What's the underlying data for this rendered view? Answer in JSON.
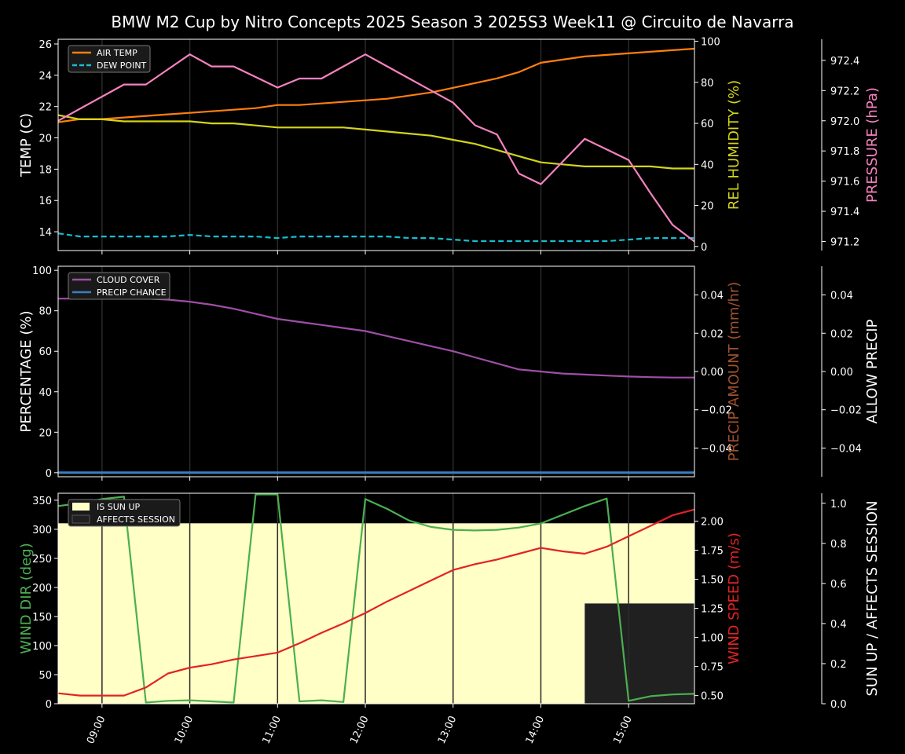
{
  "title": "BMW M2 Cup by Nitro Concepts 2025 Season 3 2025S3 Week11 @ Circuito de Navarra",
  "time_ticks": [
    "09:00",
    "10:00",
    "11:00",
    "12:00",
    "13:00",
    "14:00",
    "15:00"
  ],
  "colors": {
    "air_temp": "#ff7f0e",
    "dew_point": "#17becf",
    "humidity": "#d4d41a",
    "pressure": "#f782bf",
    "cloud": "#9e4fa6",
    "precip_chance": "#3a7fc0",
    "precip_amount_label": "#a0522d",
    "wind_dir": "#4caf50",
    "wind_speed": "#e32222",
    "sun_up": "#ffffc6",
    "affects": "#202020"
  },
  "chart_data": [
    {
      "type": "line",
      "id": "temperature",
      "x": [
        "08:30",
        "08:45",
        "09:00",
        "09:15",
        "09:30",
        "09:45",
        "10:00",
        "10:15",
        "10:30",
        "10:45",
        "11:00",
        "11:15",
        "11:30",
        "11:45",
        "12:00",
        "12:15",
        "12:30",
        "12:45",
        "13:00",
        "13:15",
        "13:30",
        "13:45",
        "14:00",
        "14:15",
        "14:30",
        "14:45",
        "15:00",
        "15:15",
        "15:30",
        "15:45"
      ],
      "series": [
        {
          "name": "AIR TEMP",
          "axis": "left",
          "values": [
            21.0,
            21.2,
            21.2,
            21.3,
            21.4,
            21.5,
            21.6,
            21.7,
            21.8,
            21.9,
            22.1,
            22.1,
            22.2,
            22.3,
            22.4,
            22.5,
            22.7,
            22.9,
            23.2,
            23.5,
            23.8,
            24.2,
            24.8,
            25.0,
            25.2,
            25.3,
            25.4,
            25.5,
            25.6,
            25.7
          ]
        },
        {
          "name": "DEW POINT",
          "axis": "left",
          "values": [
            13.9,
            13.7,
            13.7,
            13.7,
            13.7,
            13.7,
            13.8,
            13.7,
            13.7,
            13.7,
            13.6,
            13.7,
            13.7,
            13.7,
            13.7,
            13.7,
            13.6,
            13.6,
            13.5,
            13.4,
            13.4,
            13.4,
            13.4,
            13.4,
            13.4,
            13.4,
            13.5,
            13.6,
            13.6,
            13.6
          ]
        },
        {
          "name": "REL HUMIDITY",
          "axis": "right",
          "values": [
            64,
            62,
            62,
            61,
            61,
            61,
            61,
            60,
            60,
            59,
            58,
            58,
            58,
            58,
            57,
            56,
            55,
            54,
            52,
            50,
            47,
            44,
            41,
            40,
            39,
            39,
            39,
            39,
            38,
            38
          ]
        },
        {
          "name": "PRESSURE",
          "axis": "far",
          "values": [
            972.0,
            972.08,
            972.16,
            972.24,
            972.24,
            972.34,
            972.44,
            972.36,
            972.36,
            972.29,
            972.22,
            972.28,
            972.28,
            972.36,
            972.44,
            972.36,
            972.28,
            972.2,
            972.12,
            971.97,
            971.91,
            971.65,
            971.58,
            971.73,
            971.88,
            971.81,
            971.74,
            971.52,
            971.31,
            971.2
          ]
        }
      ],
      "ylabel": "TEMP (C)",
      "ylim": [
        12.8,
        26.3
      ],
      "yticks": [
        14,
        16,
        18,
        20,
        22,
        24,
        26
      ],
      "ylabel_right": "REL HUMIDITY (%)",
      "ylim_right": [
        -2,
        101
      ],
      "yticks_right": [
        0,
        20,
        40,
        60,
        80,
        100
      ],
      "ylabel_far": "PRESSURE (hPa)",
      "ylim_far": [
        971.14,
        972.54
      ],
      "yticks_far": [
        971.2,
        971.4,
        971.6,
        971.8,
        972.0,
        972.2,
        972.4
      ],
      "legend": [
        "AIR TEMP",
        "DEW POINT"
      ],
      "legend_position": "top-left"
    },
    {
      "type": "line",
      "id": "cloud-precip",
      "x": [
        "08:30",
        "08:45",
        "09:00",
        "09:15",
        "09:30",
        "09:45",
        "10:00",
        "10:15",
        "10:30",
        "10:45",
        "11:00",
        "11:15",
        "11:30",
        "11:45",
        "12:00",
        "12:15",
        "12:30",
        "12:45",
        "13:00",
        "13:15",
        "13:30",
        "13:45",
        "14:00",
        "14:15",
        "14:30",
        "14:45",
        "15:00",
        "15:15",
        "15:30",
        "15:45"
      ],
      "series": [
        {
          "name": "CLOUD COVER",
          "values": [
            86,
            86,
            86,
            86,
            86,
            85.5,
            84.5,
            83,
            81,
            78.5,
            76,
            74.5,
            73,
            71.5,
            70,
            67.5,
            65,
            62.5,
            60,
            57,
            54,
            51,
            50,
            49,
            48.5,
            48,
            47.5,
            47.2,
            47,
            47
          ]
        },
        {
          "name": "PRECIP CHANCE",
          "values": [
            0,
            0,
            0,
            0,
            0,
            0,
            0,
            0,
            0,
            0,
            0,
            0,
            0,
            0,
            0,
            0,
            0,
            0,
            0,
            0,
            0,
            0,
            0,
            0,
            0,
            0,
            0,
            0,
            0,
            0
          ]
        }
      ],
      "ylabel": "PERCENTAGE (%)",
      "ylim": [
        -2,
        102
      ],
      "yticks": [
        0,
        20,
        40,
        60,
        80,
        100
      ],
      "ylabel_right": "PRECIP AMOUNT (mm/hr)",
      "ylim_right": [
        -0.055,
        0.055
      ],
      "yticks_right": [
        -0.04,
        -0.02,
        0.0,
        0.02,
        0.04
      ],
      "ylabel_far": "ALLOW PRECIP",
      "ylim_far": [
        -0.055,
        0.055
      ],
      "yticks_far": [
        -0.04,
        -0.02,
        0.0,
        0.02,
        0.04
      ],
      "legend": [
        "CLOUD COVER",
        "PRECIP CHANCE"
      ],
      "legend_position": "top-left"
    },
    {
      "type": "line",
      "id": "wind",
      "x": [
        "08:30",
        "08:45",
        "09:00",
        "09:15",
        "09:30",
        "09:45",
        "10:00",
        "10:15",
        "10:30",
        "10:45",
        "11:00",
        "11:15",
        "11:30",
        "11:45",
        "12:00",
        "12:15",
        "12:30",
        "12:45",
        "13:00",
        "13:15",
        "13:30",
        "13:45",
        "14:00",
        "14:15",
        "14:30",
        "14:45",
        "15:00",
        "15:15",
        "15:30",
        "15:45"
      ],
      "series": [
        {
          "name": "WIND DIR",
          "axis": "left",
          "values": [
            340,
            345,
            352,
            356,
            2,
            5,
            6,
            4,
            2,
            360,
            360,
            4,
            6,
            3,
            352,
            335,
            315,
            304,
            299,
            298,
            299,
            303,
            310,
            325,
            340,
            353,
            5,
            13,
            16,
            17
          ]
        },
        {
          "name": "WIND SPEED",
          "axis": "right",
          "values": [
            0.52,
            0.5,
            0.5,
            0.5,
            0.57,
            0.69,
            0.74,
            0.77,
            0.81,
            0.84,
            0.87,
            0.95,
            1.04,
            1.12,
            1.21,
            1.31,
            1.4,
            1.49,
            1.58,
            1.63,
            1.67,
            1.72,
            1.77,
            1.74,
            1.72,
            1.78,
            1.87,
            1.96,
            2.05,
            2.1
          ]
        }
      ],
      "bands": [
        {
          "name": "IS SUN UP",
          "from": "08:30",
          "to": "15:45",
          "value": 0.9
        },
        {
          "name": "AFFECTS SESSION",
          "from": "14:30",
          "to": "15:45",
          "value": 0.5
        }
      ],
      "ylabel": "WIND DIR (deg)",
      "ylim": [
        0,
        362
      ],
      "yticks": [
        0,
        50,
        100,
        150,
        200,
        250,
        300,
        350
      ],
      "ylabel_right": "WIND SPEED (m/s)",
      "ylim_right": [
        0.43,
        2.24
      ],
      "yticks_right": [
        0.5,
        0.75,
        1.0,
        1.25,
        1.5,
        1.75,
        2.0
      ],
      "yticklabels_right": [
        "0.50",
        "0.75",
        "1.00",
        "1.25",
        "1.50",
        "1.75",
        "2.00"
      ],
      "ylabel_far": "SUN UP / AFFECTS SESSION",
      "ylim_far": [
        0,
        1.05
      ],
      "yticks_far": [
        0,
        0.2,
        0.4,
        0.6,
        0.8,
        1.0
      ],
      "yticklabels_far": [
        "0.0",
        "0.2",
        "0.4",
        "0.6",
        "0.8",
        "1.0"
      ],
      "legend": [
        "IS SUN UP",
        "AFFECTS SESSION"
      ],
      "legend_position": "top-left"
    }
  ]
}
